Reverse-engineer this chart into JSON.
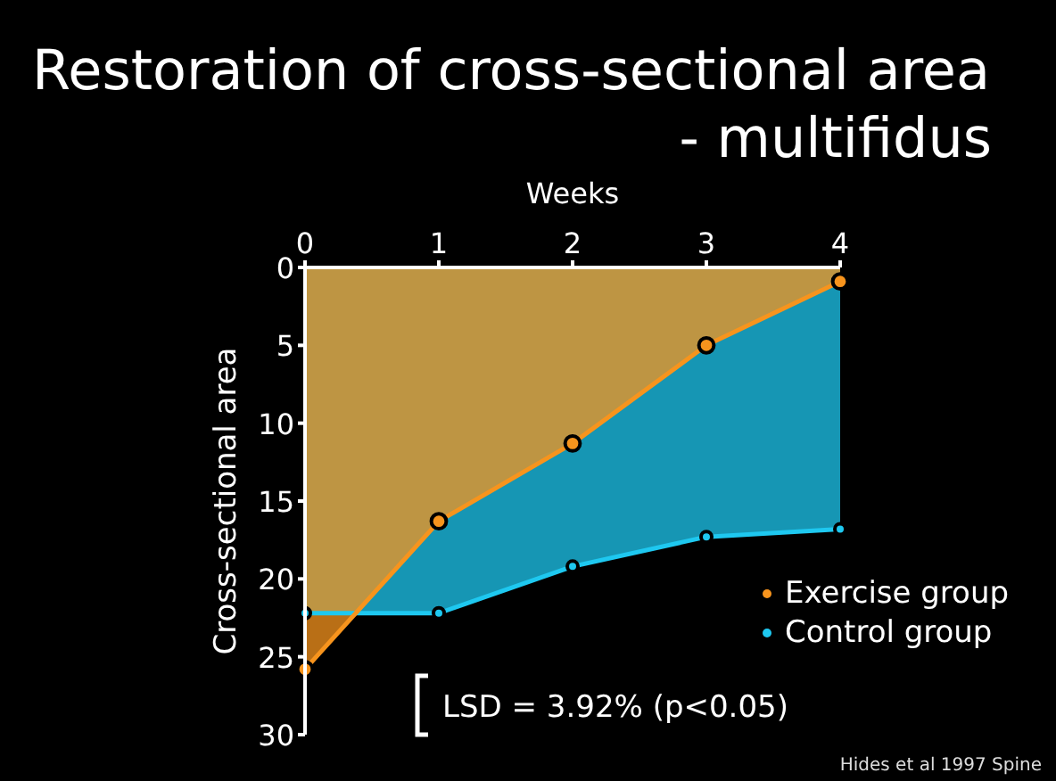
{
  "chart_data": {
    "type": "area",
    "title": "Restoration of cross-sectional area\n- multifidus",
    "xlabel": "Weeks",
    "ylabel": "Cross-sectional area",
    "x": [
      0,
      1,
      2,
      3,
      4
    ],
    "series": [
      {
        "name": "Control group",
        "color": "#1ec8f0",
        "values": [
          22.2,
          22.2,
          19.2,
          17.3,
          16.8
        ]
      },
      {
        "name": "Exercise group",
        "color": "#f7941d",
        "values": [
          25.8,
          16.3,
          11.3,
          5,
          0.9
        ]
      }
    ],
    "xlim": [
      0,
      4
    ],
    "xticks": [
      0,
      1,
      2,
      3,
      4
    ],
    "ylim": [
      30,
      0
    ],
    "yticks": [
      0,
      5,
      10,
      15,
      20,
      25,
      30
    ],
    "marker": "circle",
    "legend": "bottom right",
    "grid": false,
    "annotations": [
      "LSD = 3.92% (p<0.05)",
      "Hides et al 1997 Spine"
    ]
  }
}
